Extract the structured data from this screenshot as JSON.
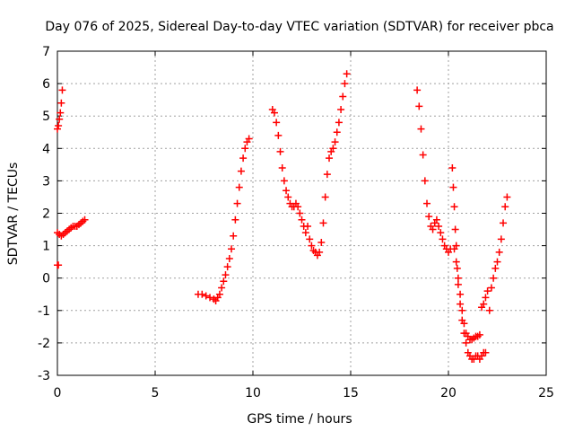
{
  "chart_data": {
    "type": "scatter",
    "title": "Day 076 of 2025, Sidereal Day-to-day VTEC variation (SDTVAR) for receiver pbca",
    "xlabel": "GPS time / hours",
    "ylabel": "SDTVAR / TECUs",
    "xlim": [
      0,
      25
    ],
    "ylim": [
      -3,
      7
    ],
    "xticks": [
      "0",
      "5",
      "10",
      "15",
      "20",
      "25"
    ],
    "yticks": [
      "-3",
      "-2",
      "-1",
      "0",
      "1",
      "2",
      "3",
      "4",
      "5",
      "6",
      "7"
    ],
    "grid": true,
    "marker": "+",
    "color": "#ff0000",
    "series": [
      {
        "points": [
          [
            0.0,
            4.6
          ],
          [
            0.05,
            4.7
          ],
          [
            0.1,
            4.9
          ],
          [
            0.15,
            5.1
          ],
          [
            0.2,
            5.4
          ],
          [
            0.25,
            5.8
          ],
          [
            0.0,
            0.4
          ],
          [
            0.05,
            0.4
          ],
          [
            0.0,
            1.4
          ],
          [
            0.1,
            1.35
          ],
          [
            0.2,
            1.3
          ],
          [
            0.3,
            1.35
          ],
          [
            0.4,
            1.4
          ],
          [
            0.5,
            1.45
          ],
          [
            0.6,
            1.5
          ],
          [
            0.7,
            1.55
          ],
          [
            0.8,
            1.6
          ],
          [
            0.9,
            1.6
          ],
          [
            1.0,
            1.6
          ],
          [
            1.1,
            1.65
          ],
          [
            1.2,
            1.7
          ],
          [
            1.3,
            1.75
          ],
          [
            1.4,
            1.8
          ],
          [
            7.2,
            -0.5
          ],
          [
            7.4,
            -0.5
          ],
          [
            7.6,
            -0.55
          ],
          [
            7.8,
            -0.6
          ],
          [
            8.0,
            -0.65
          ],
          [
            8.1,
            -0.7
          ],
          [
            8.2,
            -0.6
          ],
          [
            8.3,
            -0.5
          ],
          [
            8.4,
            -0.3
          ],
          [
            8.5,
            -0.1
          ],
          [
            8.6,
            0.1
          ],
          [
            8.7,
            0.35
          ],
          [
            8.8,
            0.6
          ],
          [
            8.9,
            0.9
          ],
          [
            9.0,
            1.3
          ],
          [
            9.1,
            1.8
          ],
          [
            9.2,
            2.3
          ],
          [
            9.3,
            2.8
          ],
          [
            9.4,
            3.3
          ],
          [
            9.5,
            3.7
          ],
          [
            9.6,
            4.0
          ],
          [
            9.7,
            4.2
          ],
          [
            9.8,
            4.3
          ],
          [
            11.0,
            5.2
          ],
          [
            11.1,
            5.1
          ],
          [
            11.2,
            4.8
          ],
          [
            11.3,
            4.4
          ],
          [
            11.4,
            3.9
          ],
          [
            11.5,
            3.4
          ],
          [
            11.6,
            3.0
          ],
          [
            11.7,
            2.7
          ],
          [
            11.8,
            2.5
          ],
          [
            11.9,
            2.3
          ],
          [
            12.0,
            2.2
          ],
          [
            12.1,
            2.2
          ],
          [
            12.2,
            2.3
          ],
          [
            12.3,
            2.2
          ],
          [
            12.4,
            2.0
          ],
          [
            12.5,
            1.8
          ],
          [
            12.6,
            1.6
          ],
          [
            12.7,
            1.4
          ],
          [
            12.8,
            1.6
          ],
          [
            12.9,
            1.2
          ],
          [
            13.0,
            1.0
          ],
          [
            13.1,
            0.85
          ],
          [
            13.2,
            0.8
          ],
          [
            13.3,
            0.7
          ],
          [
            13.4,
            0.8
          ],
          [
            13.5,
            1.1
          ],
          [
            13.6,
            1.7
          ],
          [
            13.7,
            2.5
          ],
          [
            13.8,
            3.2
          ],
          [
            13.9,
            3.7
          ],
          [
            14.0,
            3.9
          ],
          [
            14.1,
            4.0
          ],
          [
            14.2,
            4.2
          ],
          [
            14.3,
            4.5
          ],
          [
            14.4,
            4.8
          ],
          [
            14.5,
            5.2
          ],
          [
            14.6,
            5.6
          ],
          [
            14.7,
            6.0
          ],
          [
            14.8,
            6.3
          ],
          [
            18.4,
            5.8
          ],
          [
            18.5,
            5.3
          ],
          [
            18.6,
            4.6
          ],
          [
            18.7,
            3.8
          ],
          [
            18.8,
            3.0
          ],
          [
            18.9,
            2.3
          ],
          [
            19.0,
            1.9
          ],
          [
            19.1,
            1.6
          ],
          [
            19.2,
            1.5
          ],
          [
            19.3,
            1.7
          ],
          [
            19.4,
            1.8
          ],
          [
            19.5,
            1.6
          ],
          [
            19.6,
            1.4
          ],
          [
            19.7,
            1.2
          ],
          [
            19.8,
            1.0
          ],
          [
            19.9,
            0.9
          ],
          [
            20.0,
            0.8
          ],
          [
            20.1,
            0.9
          ],
          [
            20.2,
            3.4
          ],
          [
            20.25,
            2.8
          ],
          [
            20.3,
            2.2
          ],
          [
            20.35,
            1.5
          ],
          [
            20.4,
            1.0
          ],
          [
            20.45,
            0.3
          ],
          [
            20.5,
            -0.2
          ],
          [
            20.6,
            -0.8
          ],
          [
            20.7,
            -1.3
          ],
          [
            20.8,
            -1.7
          ],
          [
            20.9,
            -2.0
          ],
          [
            21.0,
            -2.3
          ],
          [
            21.1,
            -2.4
          ],
          [
            21.2,
            -2.5
          ],
          [
            21.3,
            -2.5
          ],
          [
            21.4,
            -2.4
          ],
          [
            21.5,
            -2.4
          ],
          [
            21.6,
            -2.5
          ],
          [
            21.7,
            -2.4
          ],
          [
            21.8,
            -2.3
          ],
          [
            21.9,
            -2.3
          ],
          [
            20.3,
            0.9
          ],
          [
            20.4,
            0.5
          ],
          [
            20.5,
            0.0
          ],
          [
            20.6,
            -0.5
          ],
          [
            20.7,
            -1.0
          ],
          [
            20.8,
            -1.4
          ],
          [
            20.9,
            -1.7
          ],
          [
            21.0,
            -1.8
          ],
          [
            21.1,
            -1.9
          ],
          [
            21.2,
            -1.9
          ],
          [
            21.3,
            -1.85
          ],
          [
            21.4,
            -1.8
          ],
          [
            21.5,
            -1.8
          ],
          [
            21.6,
            -1.75
          ],
          [
            21.7,
            -0.9
          ],
          [
            21.8,
            -0.8
          ],
          [
            21.9,
            -0.6
          ],
          [
            22.0,
            -0.4
          ],
          [
            22.1,
            -1.0
          ],
          [
            22.2,
            -0.3
          ],
          [
            22.3,
            0.0
          ],
          [
            22.4,
            0.3
          ],
          [
            22.5,
            0.5
          ],
          [
            22.6,
            0.8
          ],
          [
            22.7,
            1.2
          ],
          [
            22.8,
            1.7
          ],
          [
            22.9,
            2.2
          ],
          [
            23.0,
            2.5
          ]
        ]
      }
    ]
  }
}
